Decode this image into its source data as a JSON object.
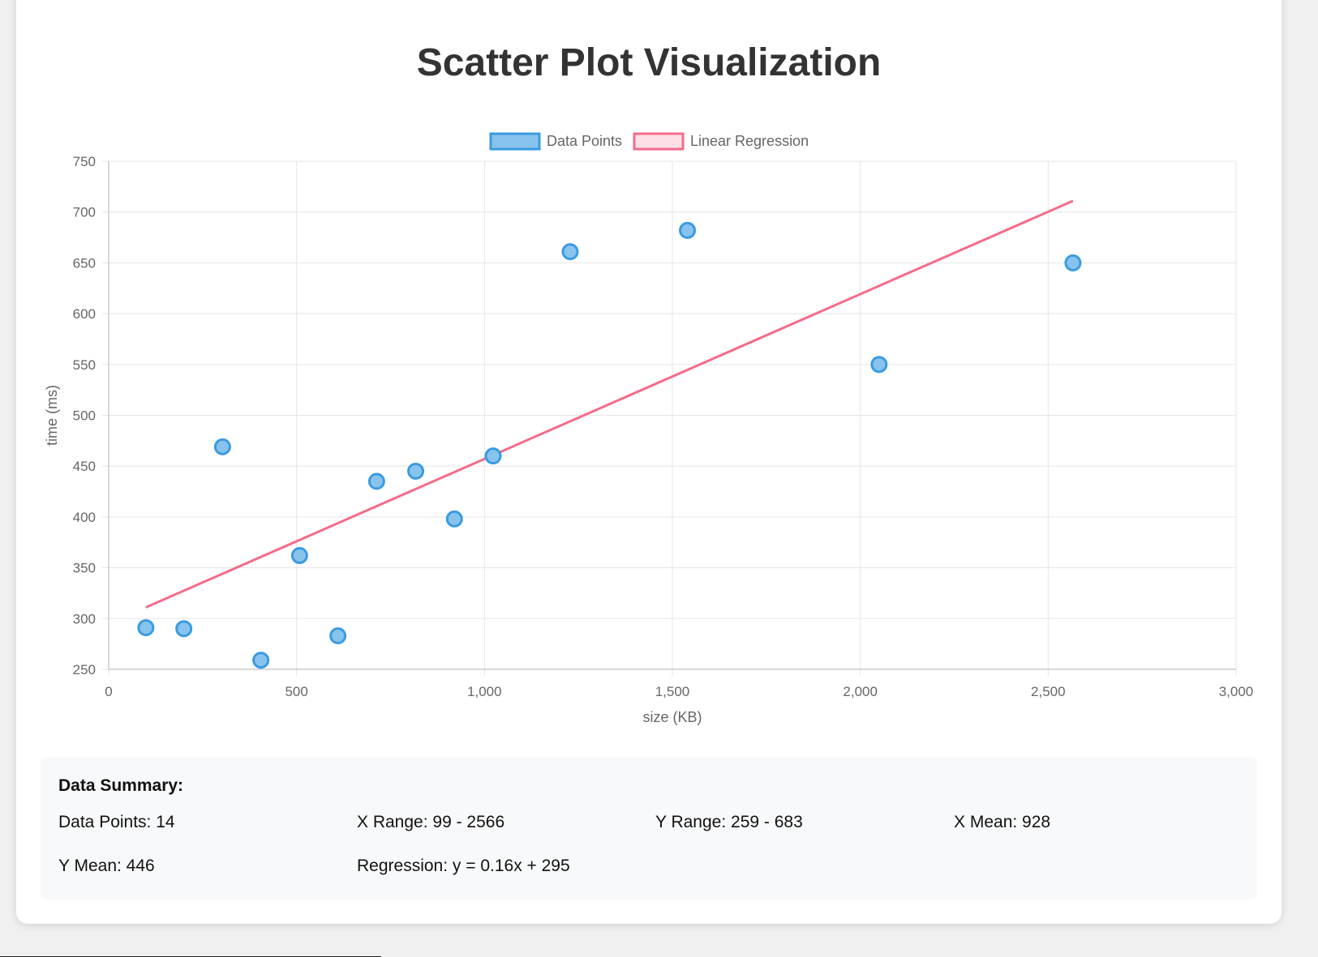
{
  "page": {
    "title": "Scatter Plot Visualization"
  },
  "colors": {
    "points_fill": "#88c3ee",
    "points_stroke": "#3a9be0",
    "regression": "#f56b8a",
    "regression_fill": "#fde0e6",
    "grid": "#e5e5e5",
    "axis_text": "#666666"
  },
  "chart_data": {
    "type": "scatter",
    "title": "Scatter Plot Visualization",
    "xlabel": "size (KB)",
    "ylabel": "time (ms)",
    "xlim": [
      0,
      3000
    ],
    "ylim": [
      250,
      750
    ],
    "x_ticks": [
      0,
      500,
      1000,
      1500,
      2000,
      2500,
      3000
    ],
    "x_tick_labels": [
      "0",
      "500",
      "1,000",
      "1,500",
      "2,000",
      "2,500",
      "3,000"
    ],
    "y_ticks": [
      250,
      300,
      350,
      400,
      450,
      500,
      550,
      600,
      650,
      700,
      750
    ],
    "y_tick_labels": [
      "250",
      "300",
      "350",
      "400",
      "450",
      "500",
      "550",
      "600",
      "650",
      "700",
      "750"
    ],
    "grid": true,
    "legend_position": "top-center",
    "series": [
      {
        "name": "Data Points",
        "kind": "scatter",
        "points": [
          {
            "x": 99,
            "y": 291
          },
          {
            "x": 200,
            "y": 290
          },
          {
            "x": 303,
            "y": 469
          },
          {
            "x": 405,
            "y": 259
          },
          {
            "x": 508,
            "y": 362
          },
          {
            "x": 610,
            "y": 283
          },
          {
            "x": 713,
            "y": 435
          },
          {
            "x": 817,
            "y": 445
          },
          {
            "x": 920,
            "y": 398
          },
          {
            "x": 1023,
            "y": 460
          },
          {
            "x": 1228,
            "y": 661
          },
          {
            "x": 1540,
            "y": 682
          },
          {
            "x": 2050,
            "y": 550
          },
          {
            "x": 2566,
            "y": 650
          }
        ]
      },
      {
        "name": "Linear Regression",
        "kind": "line",
        "points": [
          {
            "x": 99,
            "y": 311
          },
          {
            "x": 2566,
            "y": 711
          }
        ]
      }
    ]
  },
  "summary": {
    "heading": "Data Summary:",
    "items": [
      "Data Points: 14",
      "X Range: 99 - 2566",
      "Y Range: 259 - 683",
      "X Mean: 928",
      "Y Mean: 446",
      "Regression: y = 0.16x + 295"
    ]
  }
}
